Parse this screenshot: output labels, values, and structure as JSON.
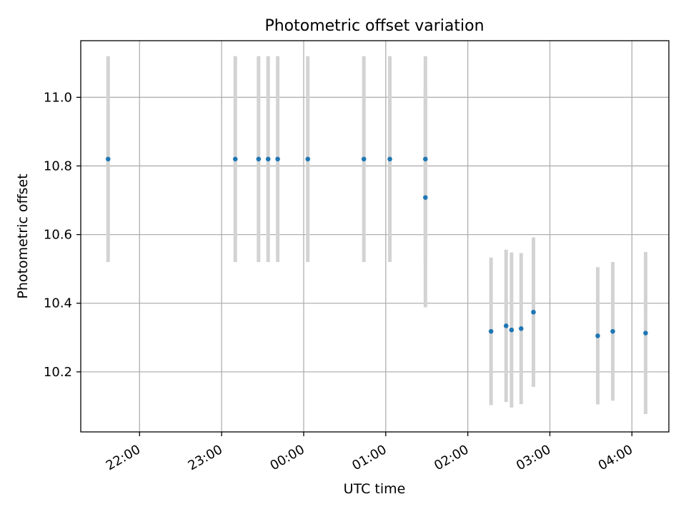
{
  "chart_data": {
    "type": "scatter",
    "title": "Photometric offset variation",
    "xlabel": "UTC time",
    "ylabel": "Photometric offset",
    "x_axis_type": "time",
    "xlim": [
      "21:17",
      "04:27"
    ],
    "ylim": [
      10.025,
      11.165
    ],
    "grid": true,
    "x_ticks": [
      "22:00",
      "23:00",
      "00:00",
      "01:00",
      "02:00",
      "03:00",
      "04:00"
    ],
    "y_ticks": [
      "10.2",
      "10.4",
      "10.6",
      "10.8",
      "11.0"
    ],
    "marker_color": "#1f77b4",
    "errorbar_color": "#d3d3d3",
    "points": [
      {
        "x": "21:37",
        "y": 10.82,
        "err": 0.3
      },
      {
        "x": "23:10",
        "y": 10.82,
        "err": 0.3
      },
      {
        "x": "23:27",
        "y": 10.82,
        "err": 0.3
      },
      {
        "x": "23:34",
        "y": 10.82,
        "err": 0.3
      },
      {
        "x": "23:41",
        "y": 10.82,
        "err": 0.3
      },
      {
        "x": "00:03",
        "y": 10.82,
        "err": 0.3
      },
      {
        "x": "00:44",
        "y": 10.82,
        "err": 0.3
      },
      {
        "x": "01:03",
        "y": 10.82,
        "err": 0.3
      },
      {
        "x": "01:29",
        "y": 10.82,
        "err": 0.3
      },
      {
        "x": "01:29",
        "y": 10.708,
        "err": 0.32
      },
      {
        "x": "02:17",
        "y": 10.318,
        "err": 0.215
      },
      {
        "x": "02:28",
        "y": 10.334,
        "err": 0.222
      },
      {
        "x": "02:32",
        "y": 10.322,
        "err": 0.226
      },
      {
        "x": "02:39",
        "y": 10.326,
        "err": 0.22
      },
      {
        "x": "02:48",
        "y": 10.374,
        "err": 0.218
      },
      {
        "x": "03:35",
        "y": 10.305,
        "err": 0.2
      },
      {
        "x": "03:46",
        "y": 10.318,
        "err": 0.202
      },
      {
        "x": "04:10",
        "y": 10.313,
        "err": 0.236
      }
    ]
  }
}
